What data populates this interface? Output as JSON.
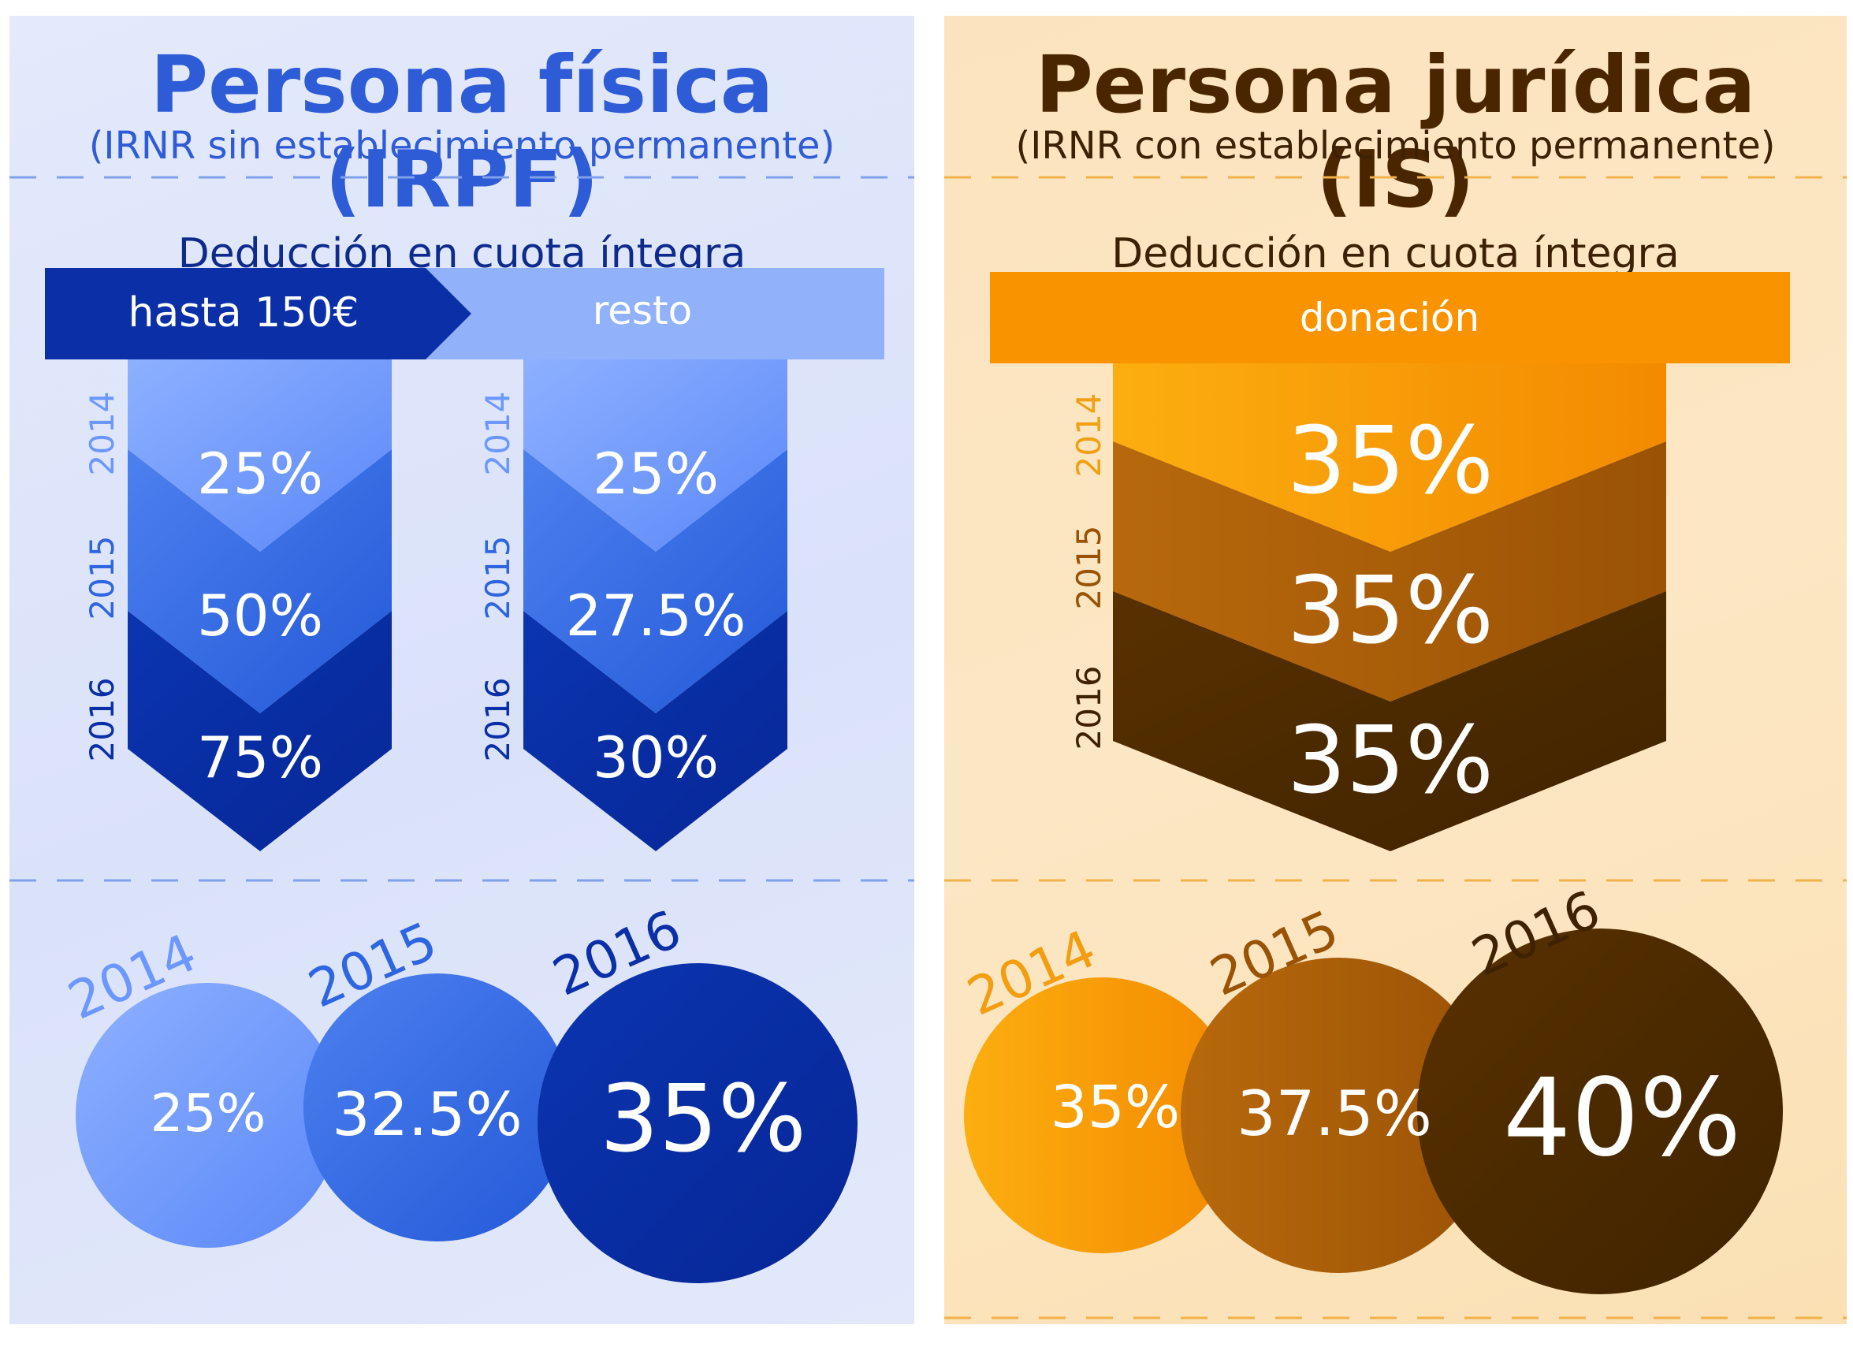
{
  "left": {
    "title": "Persona física (IRPF)",
    "subtitle": "(IRNR sin establecimiento permanente)",
    "deduction_label": "Deducción en cuota íntegra",
    "band_first": "hasta 150€",
    "band_second": "resto",
    "years": [
      "2014",
      "2015",
      "2016"
    ],
    "col1": [
      "25%",
      "50%",
      "75%"
    ],
    "col2": [
      "25%",
      "27.5%",
      "30%"
    ],
    "circles": [
      "25%",
      "32.5%",
      "35%"
    ]
  },
  "right": {
    "title": "Persona jurídica (IS)",
    "subtitle": "(IRNR con establecimiento permanente)",
    "deduction_label": "Deducción en cuota íntegra",
    "band": "donación",
    "years": [
      "2014",
      "2015",
      "2016"
    ],
    "col": [
      "35%",
      "35%",
      "35%"
    ],
    "circles": [
      "35%",
      "37.5%",
      "40%"
    ]
  },
  "colors": {
    "blue_light": "#6b97ff",
    "blue_mid": "#2e65e0",
    "blue_dark": "#0a2fa6",
    "orange_light": "#fbab0d",
    "orange_mid": "#b0620a",
    "orange_dark": "#4d2a00"
  }
}
